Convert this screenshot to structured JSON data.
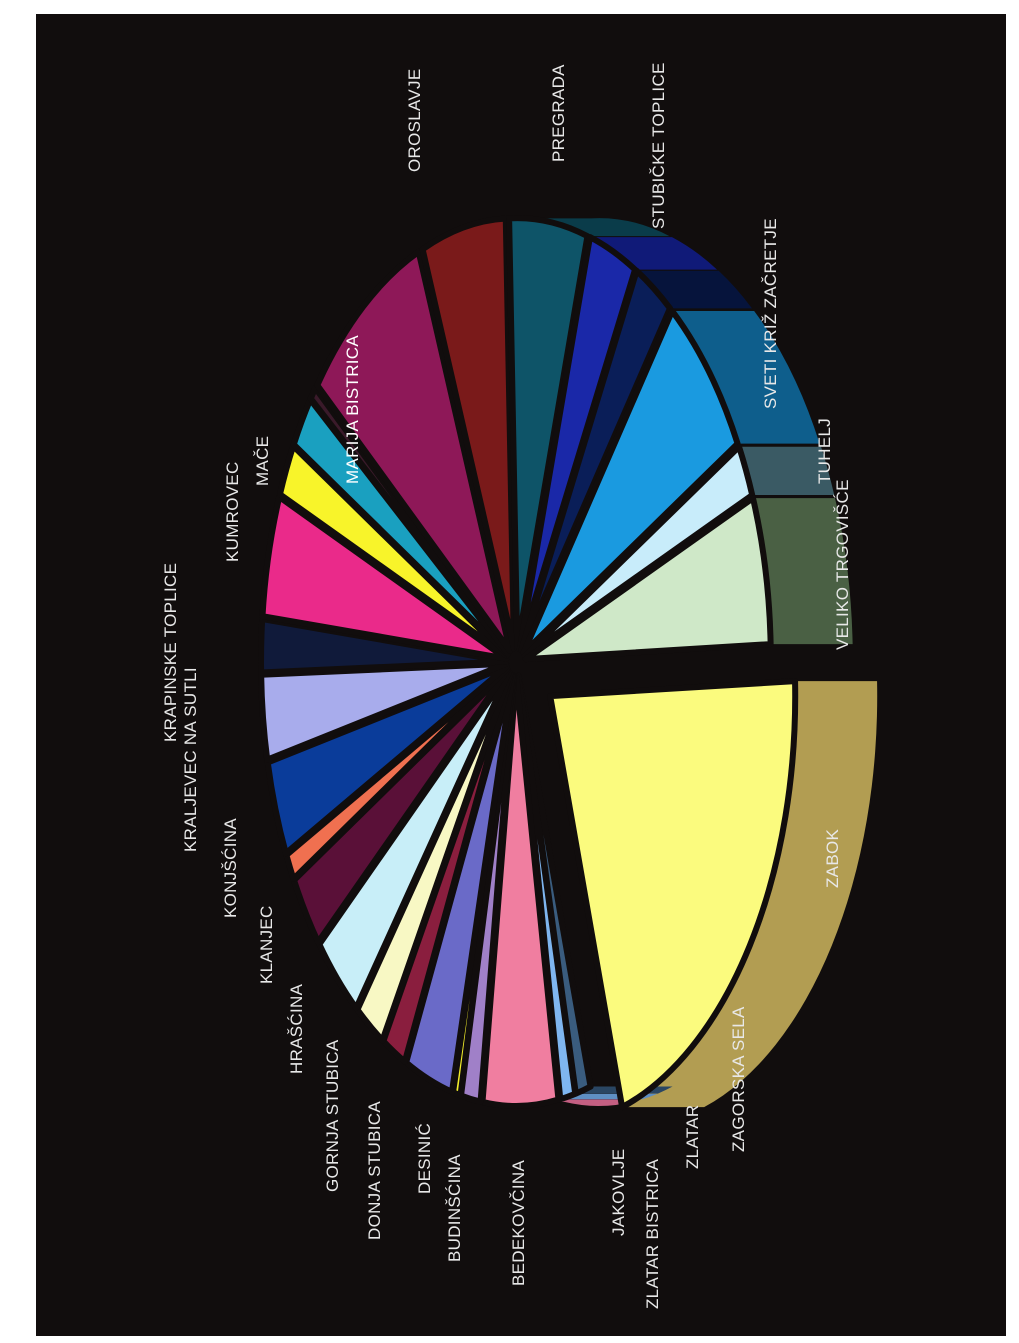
{
  "chart_data": {
    "type": "pie",
    "title": "",
    "style": "3d-exploded-rotated",
    "slices": [
      {
        "label": "ZABOK",
        "value": 21.0,
        "color": "#fbfb7e",
        "side": "#b29d52"
      },
      {
        "label": "ZAGORSKA SELA",
        "value": 1.0,
        "color": "#3a5c7e",
        "side": "#2a4663"
      },
      {
        "label": "ZLATAR",
        "value": 1.0,
        "color": "#7fb6f0",
        "side": "#5f8fc3"
      },
      {
        "label": "ZLATAR BISTRICA",
        "value": 5.0,
        "color": "#f07ea0",
        "side": "#c45f82"
      },
      {
        "label": "JAKOVLJE",
        "value": 1.3,
        "color": "#a080c8",
        "side": "#7c5fa0"
      },
      {
        "label": "BEDEKOVČINA",
        "value": 0.5,
        "color": "#f2ee2a",
        "side": "#b8b415"
      },
      {
        "label": "BEDEKOVČINA",
        "value": 3.2,
        "color": "#6a6ac8",
        "side": "#4a4aa0"
      },
      {
        "label": "BUDINŠĆINA",
        "value": 1.6,
        "color": "#8a1e3e",
        "side": "#661530"
      },
      {
        "label": "DESINIĆ",
        "value": 2.0,
        "color": "#f8f8c4",
        "side": "#c8c890"
      },
      {
        "label": "DONJA STUBICA",
        "value": 3.4,
        "color": "#c8eef8",
        "side": "#90bcc8"
      },
      {
        "label": "GORNJA STUBICA",
        "value": 2.8,
        "color": "#5a1038",
        "side": "#400a28"
      },
      {
        "label": "HRAŠĆINA",
        "value": 1.0,
        "color": "#f07050",
        "side": "#c0503a"
      },
      {
        "label": "KLANJEC",
        "value": 3.6,
        "color": "#0a3c9a",
        "side": "#072a72"
      },
      {
        "label": "KONJŠĆINA",
        "value": 3.2,
        "color": "#a8acec",
        "side": "#7c80c0"
      },
      {
        "label": "KRALJEVEC NA SUTLI",
        "value": 2.0,
        "color": "#101a3a",
        "side": "#0a1028"
      },
      {
        "label": "KRAPINSKE TOPLICE",
        "value": 4.6,
        "color": "#ea2a8a",
        "side": "#b81e68"
      },
      {
        "label": "KRAPINSKE TOPLICE",
        "value": 2.0,
        "color": "#f8f42a",
        "side": "#c0bc18"
      },
      {
        "label": "KUMROVEC",
        "value": 2.0,
        "color": "#1aa0c0",
        "side": "#13788e"
      },
      {
        "label": "MAČE",
        "value": 0.5,
        "color": "#3a1a2a",
        "side": "#26101c"
      },
      {
        "label": "MARIJA BISTRICA",
        "value": 8.4,
        "color": "#8e1858",
        "side": "#5e0e3a"
      },
      {
        "label": "OROSLAVJE",
        "value": 5.6,
        "color": "#7a1a1a",
        "side": "#521010"
      },
      {
        "label": "PREGRADA",
        "value": 5.2,
        "color": "#0e5468",
        "side": "#0a3c4a"
      },
      {
        "label": "STUBIČKE TOPLICE",
        "value": 3.2,
        "color": "#1a28a8",
        "side": "#101a78"
      },
      {
        "label": "SVETI KRIŽ ZAČRETJE",
        "value": 2.6,
        "color": "#0a1e58",
        "side": "#06143c"
      },
      {
        "label": "SVETI KRIŽ ZAČRETJE",
        "value": 6.6,
        "color": "#1a9ae0",
        "side": "#0e5e8c"
      },
      {
        "label": "TUHELJ",
        "value": 2.0,
        "color": "#c8ecfa",
        "side": "#3a5a64"
      },
      {
        "label": "VELIKO TRGOVIŠĆE",
        "value": 5.6,
        "color": "#cfe8c8",
        "side": "#4a6044"
      }
    ]
  },
  "labels": [
    {
      "id": "oroslavje",
      "text": "OROSLAVJE"
    },
    {
      "id": "pregrada",
      "text": "PREGRADA"
    },
    {
      "id": "stubicke",
      "text": "STUBIČKE TOPLICE"
    },
    {
      "id": "sveti",
      "text": "SVETI KRIŽ ZAČRETJE"
    },
    {
      "id": "tuhelj",
      "text": "TUHELJ"
    },
    {
      "id": "veliko",
      "text": "VELIKO TRGOVIŠĆE"
    },
    {
      "id": "zabok",
      "text": "ZABOK"
    },
    {
      "id": "zagorska",
      "text": "ZAGORSKA SELA"
    },
    {
      "id": "zlatar",
      "text": "ZLATAR"
    },
    {
      "id": "zlatarb",
      "text": "ZLATAR BISTRICA"
    },
    {
      "id": "jakovlje",
      "text": "JAKOVLJE"
    },
    {
      "id": "bedek",
      "text": "BEDEKOVČINA"
    },
    {
      "id": "budin",
      "text": "BUDINŠĆINA"
    },
    {
      "id": "desinic",
      "text": "DESINIĆ"
    },
    {
      "id": "donja",
      "text": "DONJA STUBICA"
    },
    {
      "id": "gornja",
      "text": "GORNJA STUBICA"
    },
    {
      "id": "hrascina",
      "text": "HRAŠĆINA"
    },
    {
      "id": "klanjec",
      "text": "KLANJEC"
    },
    {
      "id": "konjscina",
      "text": "KONJŠĆINA"
    },
    {
      "id": "kraljevec",
      "text": "KRALJEVEC NA SUTLI"
    },
    {
      "id": "krapinske",
      "text": "KRAPINSKE TOPLICE"
    },
    {
      "id": "kumrovec",
      "text": "KUMROVEC"
    },
    {
      "id": "mace",
      "text": "MAČE"
    },
    {
      "id": "marija",
      "text": "MARIJA BISTRICA"
    }
  ]
}
